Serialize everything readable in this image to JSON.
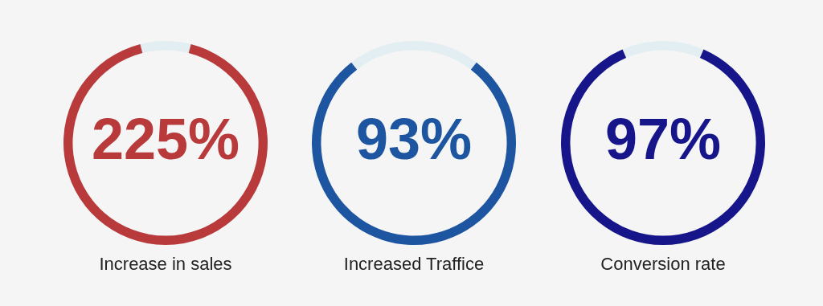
{
  "chart_data": [
    {
      "type": "donut",
      "categories": [
        null,
        "Increase in sales"
      ],
      "values": [
        8,
        92
      ],
      "colors": [
        "#e3eef2",
        "#b83a3b"
      ],
      "annotations": [
        "225%"
      ]
    },
    {
      "type": "donut",
      "categories": [
        null,
        "Increased Traffice"
      ],
      "values": [
        21,
        79
      ],
      "colors": [
        "#e3eef2",
        "#1d55a1"
      ],
      "annotations": [
        "93%"
      ]
    },
    {
      "type": "donut",
      "categories": [
        null,
        "Conversion rate"
      ],
      "values": [
        13,
        87
      ],
      "colors": [
        "#e3eef2",
        "#16168a"
      ],
      "annotations": [
        "97%"
      ]
    }
  ]
}
